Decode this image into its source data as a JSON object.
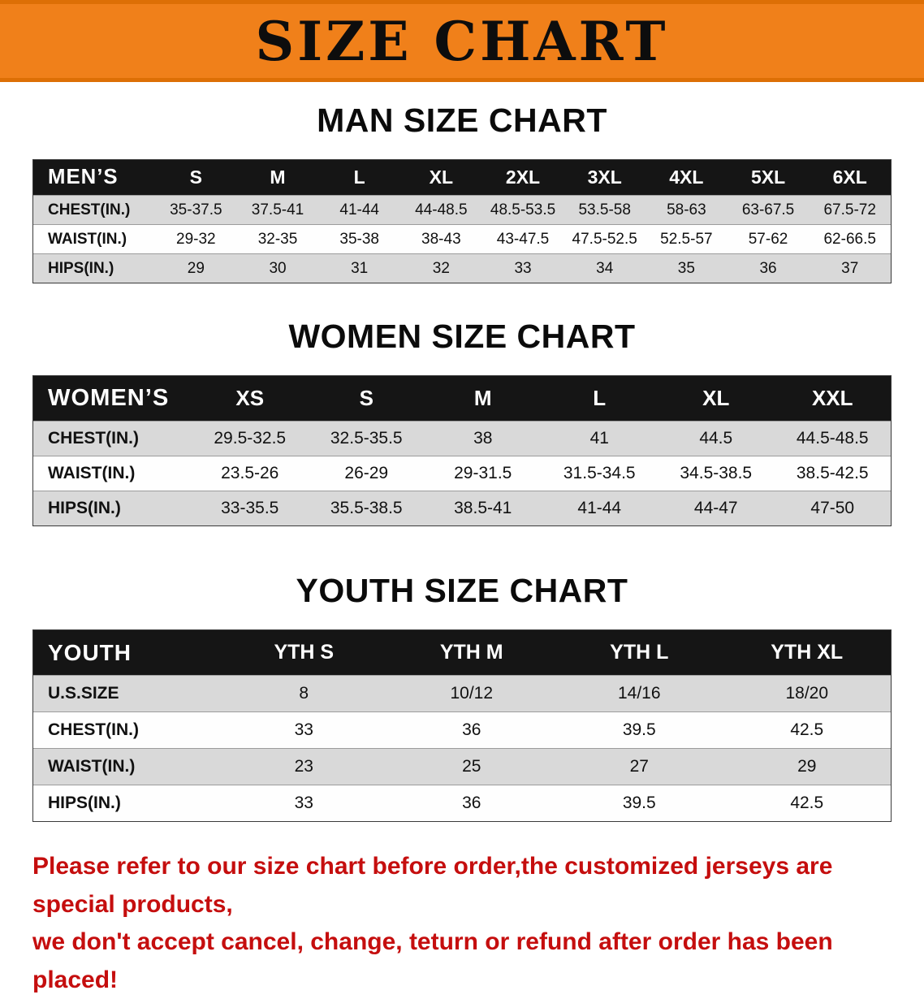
{
  "banner": {
    "title": "SIZE CHART",
    "bg_color": "#f0801a",
    "edge_color": "#dd6f05",
    "text_color": "#0d0d0d"
  },
  "colors": {
    "table_header_bg": "#151515",
    "table_header_text": "#ffffff",
    "row_shade": "#d9d9d9",
    "row_plain": "#fefefe",
    "note_text": "#c50e0e"
  },
  "tables": {
    "men": {
      "heading": "MAN SIZE CHART",
      "header_label": "MEN’S",
      "columns": [
        "S",
        "M",
        "L",
        "XL",
        "2XL",
        "3XL",
        "4XL",
        "5XL",
        "6XL"
      ],
      "rows": [
        {
          "label": "CHEST(IN.)",
          "values": [
            "35-37.5",
            "37.5-41",
            "41-44",
            "44-48.5",
            "48.5-53.5",
            "53.5-58",
            "58-63",
            "63-67.5",
            "67.5-72"
          ]
        },
        {
          "label": "WAIST(IN.)",
          "values": [
            "29-32",
            "32-35",
            "35-38",
            "38-43",
            "43-47.5",
            "47.5-52.5",
            "52.5-57",
            "57-62",
            "62-66.5"
          ]
        },
        {
          "label": "HIPS(IN.)",
          "values": [
            "29",
            "30",
            "31",
            "32",
            "33",
            "34",
            "35",
            "36",
            "37"
          ]
        }
      ]
    },
    "women": {
      "heading": "WOMEN SIZE CHART",
      "header_label": "WOMEN’S",
      "columns": [
        "XS",
        "S",
        "M",
        "L",
        "XL",
        "XXL"
      ],
      "rows": [
        {
          "label": "CHEST(IN.)",
          "values": [
            "29.5-32.5",
            "32.5-35.5",
            "38",
            "41",
            "44.5",
            "44.5-48.5"
          ]
        },
        {
          "label": "WAIST(IN.)",
          "values": [
            "23.5-26",
            "26-29",
            "29-31.5",
            "31.5-34.5",
            "34.5-38.5",
            "38.5-42.5"
          ]
        },
        {
          "label": "HIPS(IN.)",
          "values": [
            "33-35.5",
            "35.5-38.5",
            "38.5-41",
            "41-44",
            "44-47",
            "47-50"
          ]
        }
      ]
    },
    "youth": {
      "heading": "YOUTH SIZE CHART",
      "header_label": "YOUTH",
      "columns": [
        "YTH S",
        "YTH M",
        "YTH L",
        "YTH XL"
      ],
      "rows": [
        {
          "label": "U.S.SIZE",
          "values": [
            "8",
            "10/12",
            "14/16",
            "18/20"
          ]
        },
        {
          "label": "CHEST(IN.)",
          "values": [
            "33",
            "36",
            "39.5",
            "42.5"
          ]
        },
        {
          "label": "WAIST(IN.)",
          "values": [
            "23",
            "25",
            "27",
            "29"
          ]
        },
        {
          "label": "HIPS(IN.)",
          "values": [
            "33",
            "36",
            "39.5",
            "42.5"
          ]
        }
      ]
    }
  },
  "note": {
    "line1": "Please refer to our size chart before order,the customized jerseys are special products,",
    "line2": "we don't accept cancel, change, teturn or refund after order has been placed!"
  }
}
